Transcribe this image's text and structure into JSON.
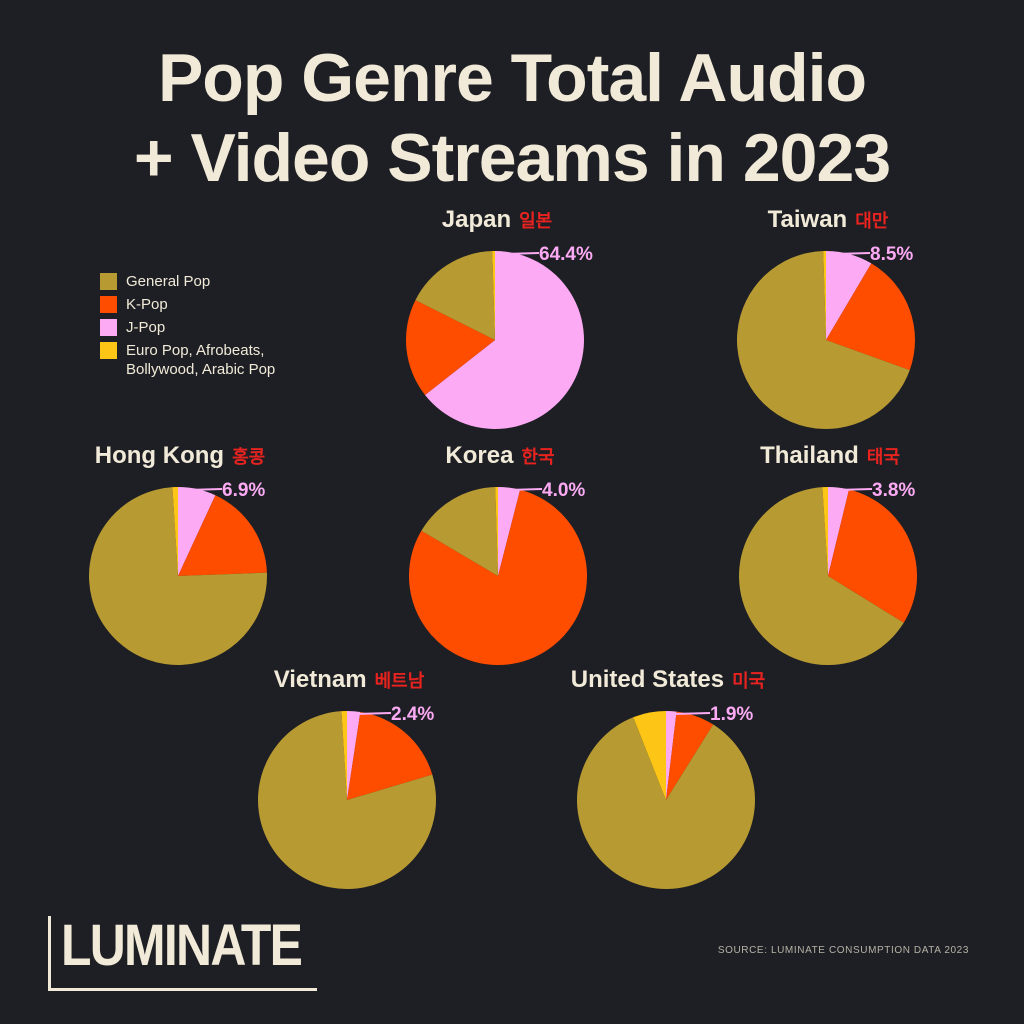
{
  "title_lines": [
    "Pop Genre Total Audio",
    "+ Video Streams in 2023"
  ],
  "colors": {
    "background": "#1e1f24",
    "text": "#f1ead8",
    "korean": "#e8231f",
    "General Pop": "#b89a33",
    "K-Pop": "#ff4d00",
    "J-Pop": "#fbaaf3",
    "Euro Pop, Afrobeats, Bollywood, Arabic Pop": "#fdc616"
  },
  "legend": [
    {
      "label": "General Pop",
      "color": "#b89a33"
    },
    {
      "label": "K-Pop",
      "color": "#ff4d00"
    },
    {
      "label": "J-Pop",
      "color": "#fbaaf3"
    },
    {
      "label": "Euro Pop, Afrobeats, Bollywood, Arabic Pop",
      "color": "#fdc616"
    }
  ],
  "chart_data": {
    "type": "pie",
    "categories": [
      "J-Pop",
      "K-Pop",
      "General Pop",
      "Euro Pop, Afrobeats, Bollywood, Arabic Pop"
    ],
    "legend_position": "top-left",
    "pies": [
      {
        "name": "Japan",
        "korean": "일본",
        "label": "64.4%",
        "values": [
          64.4,
          18.0,
          17.1,
          0.5
        ]
      },
      {
        "name": "Taiwan",
        "korean": "대만",
        "label": "8.5%",
        "values": [
          8.5,
          22.0,
          69.0,
          0.5
        ]
      },
      {
        "name": "Hong Kong",
        "korean": "홍콩",
        "label": "6.9%",
        "values": [
          6.9,
          17.5,
          74.6,
          1.0
        ]
      },
      {
        "name": "Korea",
        "korean": "한국",
        "label": "4.0%",
        "values": [
          4.0,
          79.5,
          16.0,
          0.5
        ]
      },
      {
        "name": "Thailand",
        "korean": "태국",
        "label": "3.8%",
        "values": [
          3.8,
          30.0,
          65.2,
          1.0
        ]
      },
      {
        "name": "Vietnam",
        "korean": "베트남",
        "label": "2.4%",
        "values": [
          2.4,
          18.0,
          78.6,
          1.0
        ]
      },
      {
        "name": "United States",
        "korean": "미국",
        "label": "1.9%",
        "values": [
          1.9,
          7.0,
          85.1,
          6.0
        ]
      }
    ]
  },
  "logo": "LUMINATE",
  "source": "SOURCE: LUMINATE CONSUMPTION DATA 2023"
}
